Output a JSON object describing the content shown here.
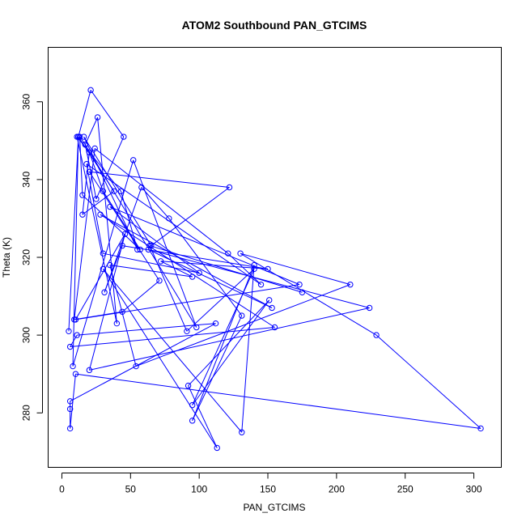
{
  "chart_data": {
    "type": "line",
    "title": "ATOM2 Southbound PAN_GTCIMS",
    "xlabel": "PAN_GTCIMS",
    "ylabel": "Theta (K)",
    "xlim": [
      -10,
      320
    ],
    "ylim": [
      266,
      374
    ],
    "xticks": [
      0,
      50,
      100,
      150,
      200,
      250,
      300
    ],
    "yticks": [
      280,
      300,
      320,
      340,
      360
    ],
    "grid": false,
    "marker": "open-circle",
    "color": "#0000ff",
    "series": [
      {
        "points": [
          [
            5,
            301
          ],
          [
            12,
            351
          ],
          [
            21,
            363
          ],
          [
            45,
            351
          ],
          [
            25,
            335
          ],
          [
            17,
            349
          ],
          [
            13,
            351
          ],
          [
            15,
            336
          ],
          [
            57,
            322
          ],
          [
            30,
            337
          ],
          [
            20,
            347
          ],
          [
            15,
            331
          ],
          [
            38,
            337
          ],
          [
            12,
            351
          ],
          [
            8,
            292
          ],
          [
            52,
            345
          ],
          [
            98,
            302
          ],
          [
            17,
            349
          ],
          [
            26,
            356
          ],
          [
            40,
            303
          ],
          [
            11,
            351
          ],
          [
            43,
            337
          ],
          [
            55,
            322
          ],
          [
            16,
            351
          ],
          [
            65,
            323
          ],
          [
            122,
            338
          ],
          [
            20,
            342
          ],
          [
            71,
            314
          ],
          [
            44,
            306
          ],
          [
            9,
            304
          ],
          [
            24,
            348
          ],
          [
            121,
            321
          ],
          [
            145,
            313
          ],
          [
            18,
            344
          ],
          [
            30,
            321
          ],
          [
            100,
            316
          ],
          [
            35,
            333
          ],
          [
            173,
            313
          ],
          [
            10,
            304
          ],
          [
            46,
            326
          ],
          [
            20,
            291
          ],
          [
            224,
            307
          ],
          [
            63,
            322
          ],
          [
            153,
            307
          ],
          [
            28,
            331
          ],
          [
            155,
            302
          ],
          [
            6,
            297
          ],
          [
            11,
            300
          ],
          [
            112,
            303
          ],
          [
            6,
            283
          ],
          [
            6,
            281
          ],
          [
            6,
            276
          ],
          [
            10,
            290
          ],
          [
            305,
            276
          ],
          [
            229,
            300
          ],
          [
            130,
            321
          ],
          [
            210,
            313
          ],
          [
            54,
            292
          ],
          [
            35,
            318
          ],
          [
            95,
            315
          ],
          [
            72,
            319
          ],
          [
            150,
            317
          ],
          [
            44,
            323
          ],
          [
            31,
            311
          ],
          [
            58,
            338
          ],
          [
            78,
            330
          ],
          [
            131,
            305
          ],
          [
            95,
            278
          ],
          [
            140,
            318
          ],
          [
            131,
            275
          ],
          [
            30,
            317
          ],
          [
            113,
            271
          ],
          [
            92,
            287
          ],
          [
            151,
            309
          ],
          [
            95,
            282
          ],
          [
            140,
            317
          ],
          [
            91,
            301
          ],
          [
            64,
            323
          ],
          [
            175,
            311
          ]
        ]
      }
    ]
  }
}
